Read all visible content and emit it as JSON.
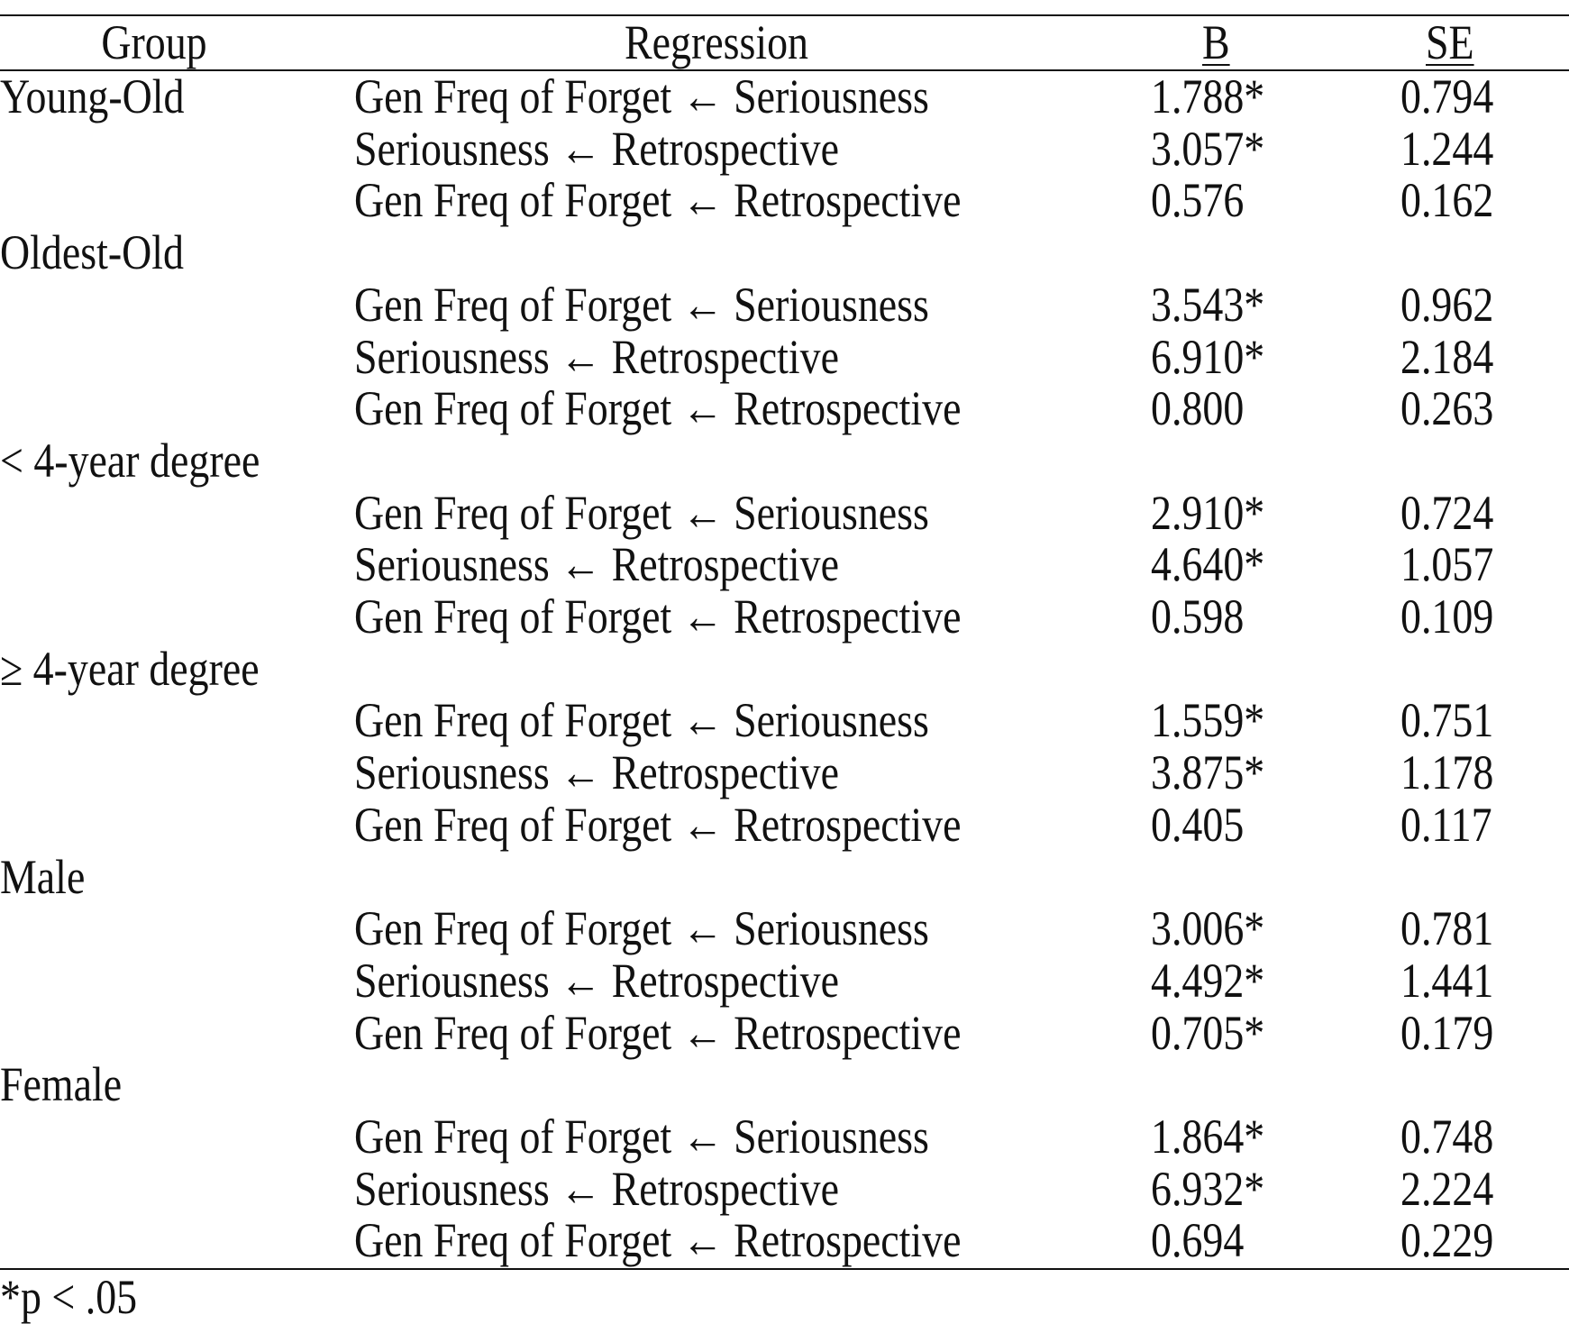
{
  "header": {
    "group": "Group",
    "regression": "Regression",
    "b": "B",
    "se": "SE"
  },
  "groups": [
    {
      "name": "Young-Old",
      "rows": [
        {
          "regression": "Gen Freq of Forget ← Seriousness",
          "b": "1.788*",
          "se": "0.794"
        },
        {
          "regression": "Seriousness ← Retrospective",
          "b": "3.057*",
          "se": "1.244"
        },
        {
          "regression": "Gen Freq of Forget ← Retrospective",
          "b": "0.576",
          "se": "0.162"
        }
      ]
    },
    {
      "name": "Oldest-Old",
      "rows": [
        {
          "regression": "Gen Freq of Forget ← Seriousness",
          "b": "3.543*",
          "se": "0.962"
        },
        {
          "regression": "Seriousness ← Retrospective",
          "b": "6.910*",
          "se": "2.184"
        },
        {
          "regression": "Gen Freq of Forget ← Retrospective",
          "b": "0.800",
          "se": "0.263"
        }
      ]
    },
    {
      "name": "< 4-year degree",
      "rows": [
        {
          "regression": "Gen Freq of Forget ← Seriousness",
          "b": "2.910*",
          "se": "0.724"
        },
        {
          "regression": "Seriousness ← Retrospective",
          "b": "4.640*",
          "se": "1.057"
        },
        {
          "regression": "Gen Freq of Forget ← Retrospective",
          "b": "0.598",
          "se": "0.109"
        }
      ]
    },
    {
      "name": "≥ 4-year degree",
      "rows": [
        {
          "regression": "Gen Freq of Forget ← Seriousness",
          "b": "1.559*",
          "se": "0.751"
        },
        {
          "regression": "Seriousness ← Retrospective",
          "b": "3.875*",
          "se": "1.178"
        },
        {
          "regression": "Gen Freq of Forget ← Retrospective",
          "b": "0.405",
          "se": "0.117"
        }
      ]
    },
    {
      "name": "Male",
      "rows": [
        {
          "regression": "Gen Freq of Forget ← Seriousness",
          "b": "3.006*",
          "se": "0.781"
        },
        {
          "regression": "Seriousness ← Retrospective",
          "b": "4.492*",
          "se": "1.441"
        },
        {
          "regression": "Gen Freq of Forget ← Retrospective",
          "b": "0.705*",
          "se": "0.179"
        }
      ]
    },
    {
      "name": "Female",
      "rows": [
        {
          "regression": "Gen Freq of Forget ← Seriousness",
          "b": "1.864*",
          "se": "0.748"
        },
        {
          "regression": "Seriousness ← Retrospective",
          "b": "6.932*",
          "se": "2.224"
        },
        {
          "regression": "Gen Freq of Forget ← Retrospective",
          "b": "0.694",
          "se": "0.229"
        }
      ]
    }
  ],
  "footnote": "*p < .05"
}
